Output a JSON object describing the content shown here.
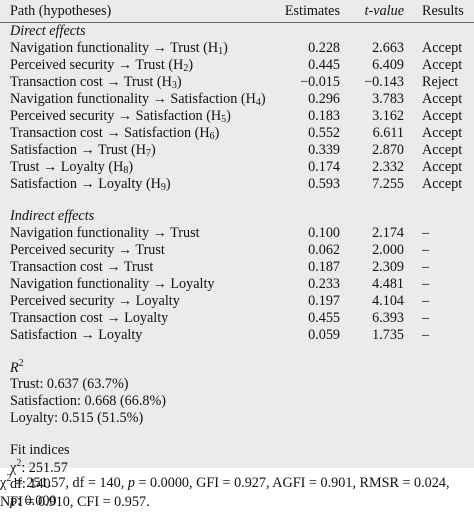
{
  "header": {
    "path": "Path (hypotheses)",
    "estimates": "Estimates",
    "t_value": "t-value",
    "results": "Results"
  },
  "direct": {
    "title": "Direct effects",
    "rows": [
      {
        "path": "Navigation functionality → Trust (H",
        "h": "1",
        "estimate": "0.228",
        "t": "2.663",
        "result": "Accept"
      },
      {
        "path": "Perceived security → Trust (H",
        "h": "2",
        "estimate": "0.445",
        "t": "6.409",
        "result": "Accept"
      },
      {
        "path": "Transaction cost → Trust (H",
        "h": "3",
        "estimate": "−0.015",
        "t": "−0.143",
        "result": "Reject"
      },
      {
        "path": "Navigation functionality → Satisfaction (H",
        "h": "4",
        "estimate": "0.296",
        "t": "3.783",
        "result": "Accept"
      },
      {
        "path": "Perceived security → Satisfaction (H",
        "h": "5",
        "estimate": "0.183",
        "t": "3.162",
        "result": "Accept"
      },
      {
        "path": "Transaction cost → Satisfaction (H",
        "h": "6",
        "estimate": "0.552",
        "t": "6.611",
        "result": "Accept"
      },
      {
        "path": "Satisfaction → Trust (H",
        "h": "7",
        "estimate": "0.339",
        "t": "2.870",
        "result": "Accept"
      },
      {
        "path": "Trust → Loyalty (H",
        "h": "8",
        "estimate": "0.174",
        "t": "2.332",
        "result": "Accept"
      },
      {
        "path": "Satisfaction → Loyalty (H",
        "h": "9",
        "estimate": "0.593",
        "t": "7.255",
        "result": "Accept"
      }
    ]
  },
  "indirect": {
    "title": "Indirect effects",
    "rows": [
      {
        "path": "Navigation functionality → Trust",
        "estimate": "0.100",
        "t": "2.174",
        "result": "–"
      },
      {
        "path": "Perceived security → Trust",
        "estimate": "0.062",
        "t": "2.000",
        "result": "–"
      },
      {
        "path": "Transaction cost → Trust",
        "estimate": "0.187",
        "t": "2.309",
        "result": "–"
      },
      {
        "path": "Navigation functionality → Loyalty",
        "estimate": "0.233",
        "t": "4.481",
        "result": "–"
      },
      {
        "path": "Perceived security → Loyalty",
        "estimate": "0.197",
        "t": "4.104",
        "result": "–"
      },
      {
        "path": "Transaction cost → Loyalty",
        "estimate": "0.455",
        "t": "6.393",
        "result": "–"
      },
      {
        "path": "Satisfaction → Loyalty",
        "estimate": "0.059",
        "t": "1.735",
        "result": "–"
      }
    ]
  },
  "r2": {
    "title_base": "R",
    "title_sup": "2",
    "rows": [
      "Trust: 0.637 (63.7%)",
      "Satisfaction: 0.668 (66.8%)",
      "Loyalty: 0.515 (51.5%)"
    ]
  },
  "fit": {
    "title": "Fit indices",
    "chi_base": "χ",
    "chi_sup": "2",
    "chi_value": ": 251.57",
    "df": "df: 140",
    "p_label": "p",
    "p_value": ": 0.000"
  },
  "footnote": {
    "line1_a": "χ",
    "line1_sup": "2",
    "line1_b": " = 251.57, df = 140, ",
    "line1_p": "p",
    "line1_c": " = 0.0000, GFI = 0.927, AGFI = 0.901, RMSR = 0.024,",
    "line2": "NFI = 0.910, CFI = 0.957."
  }
}
